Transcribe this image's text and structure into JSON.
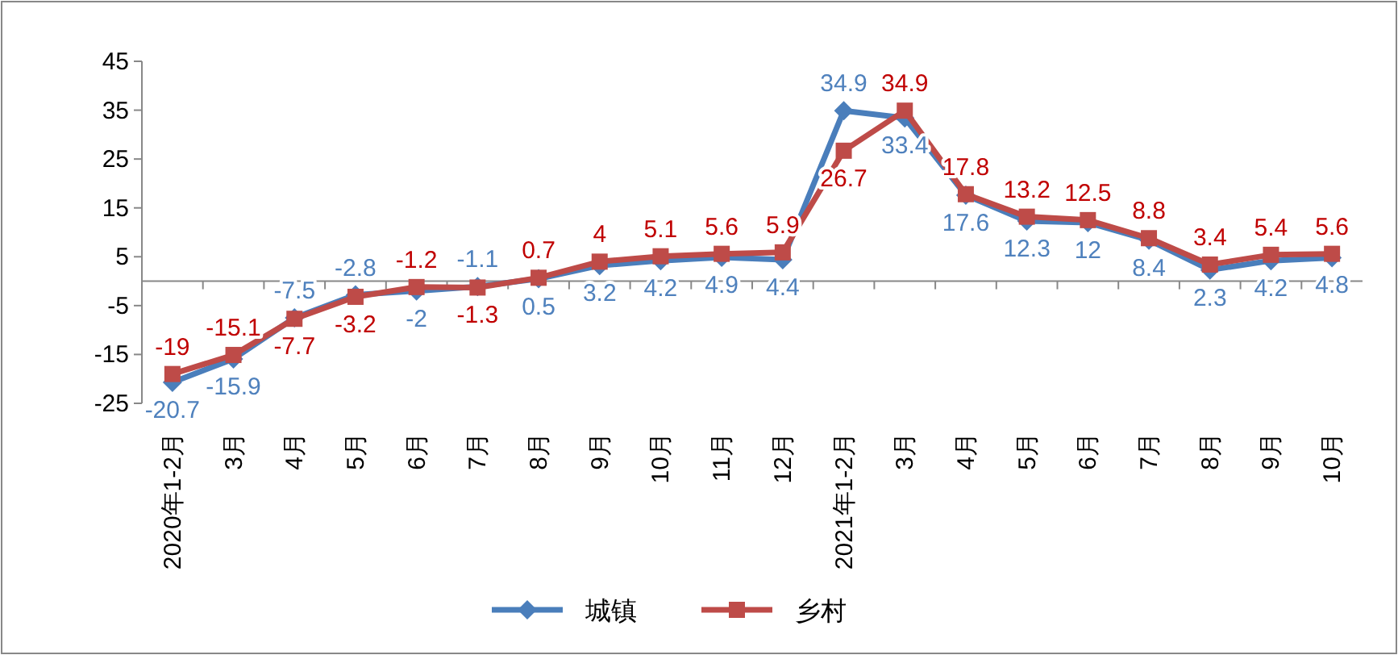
{
  "chart_data": {
    "type": "line",
    "categories": [
      "2020年1-2月",
      "3月",
      "4月",
      "5月",
      "6月",
      "7月",
      "8月",
      "9月",
      "10月",
      "11月",
      "12月",
      "2021年1-2月",
      "3月",
      "4月",
      "5月",
      "6月",
      "7月",
      "8月",
      "9月",
      "10月"
    ],
    "series": [
      {
        "name": "城镇",
        "color": "#4a7ebb",
        "marker": "diamond",
        "values": [
          -20.7,
          -15.9,
          -7.5,
          -2.8,
          -2,
          -1.1,
          0.5,
          3.2,
          4.2,
          4.9,
          4.4,
          34.9,
          33.4,
          17.6,
          12.3,
          12,
          8.4,
          2.3,
          4.2,
          4.8
        ]
      },
      {
        "name": "乡村",
        "color": "#be4b48",
        "marker": "square",
        "values": [
          -19,
          -15.1,
          -7.7,
          -3.2,
          -1.2,
          -1.3,
          0.7,
          4,
          5.1,
          5.6,
          5.9,
          26.7,
          34.9,
          17.8,
          13.2,
          12.5,
          8.8,
          3.4,
          5.4,
          5.6
        ]
      }
    ],
    "ylim": [
      -25,
      45
    ],
    "yticks": [
      -25,
      -15,
      -5,
      5,
      15,
      25,
      35,
      45
    ],
    "data_labels": true,
    "legend": "bottom",
    "grid": false
  }
}
